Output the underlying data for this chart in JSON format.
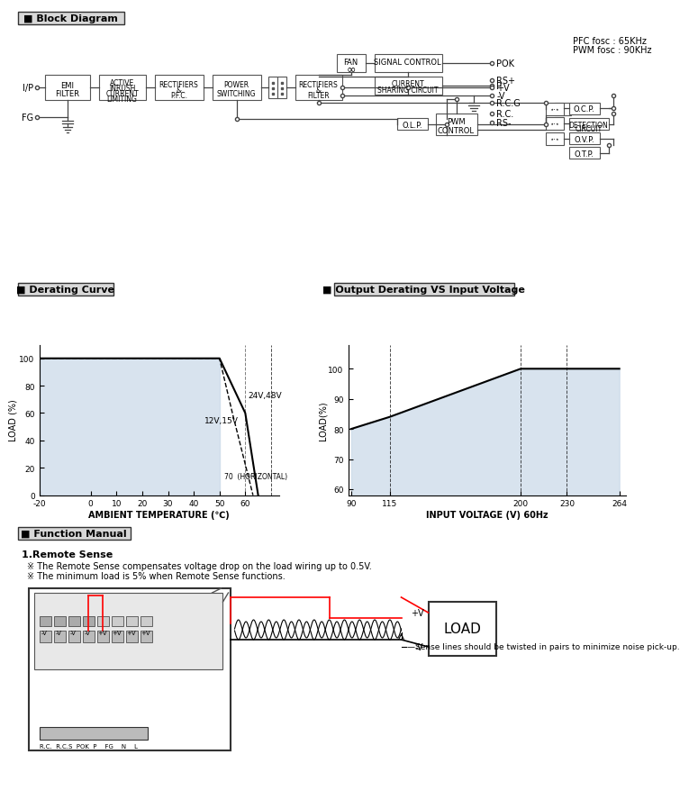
{
  "bg_color": "#ffffff",
  "block_diagram_title": "■ Block Diagram",
  "derating_title": "■ Derating Curve",
  "output_derating_title": "■ Output Derating VS Input Voltage",
  "function_manual_title": "■ Function Manual",
  "pfc_text": "PFC fosc : 65KHz",
  "pwm_text": "PWM fosc : 90KHz",
  "derating_xlabel": "AMBIENT TEMPERATURE (℃)",
  "derating_ylabel": "LOAD (%)",
  "output_xlabel": "INPUT VOLTAGE (V) 60Hz",
  "output_ylabel": "LOAD(%)",
  "label_24_48V": "24V,48V",
  "label_12_15V": "12V,15V",
  "label_horizontal": "70  (HORIZONTAL)",
  "remote_sense_title": "1.Remote Sense",
  "remote_sense_text1": "※ The Remote Sense compensates voltage drop on the load wiring up to 0.5V.",
  "remote_sense_text2": "※ The minimum load is 5% when Remote Sense functions.",
  "sense_line_text": "—Sense lines should be twisted in pairs to minimize noise pick-up.",
  "load_label": "LOAD",
  "pv_label": "+V",
  "nv_label": "-V"
}
